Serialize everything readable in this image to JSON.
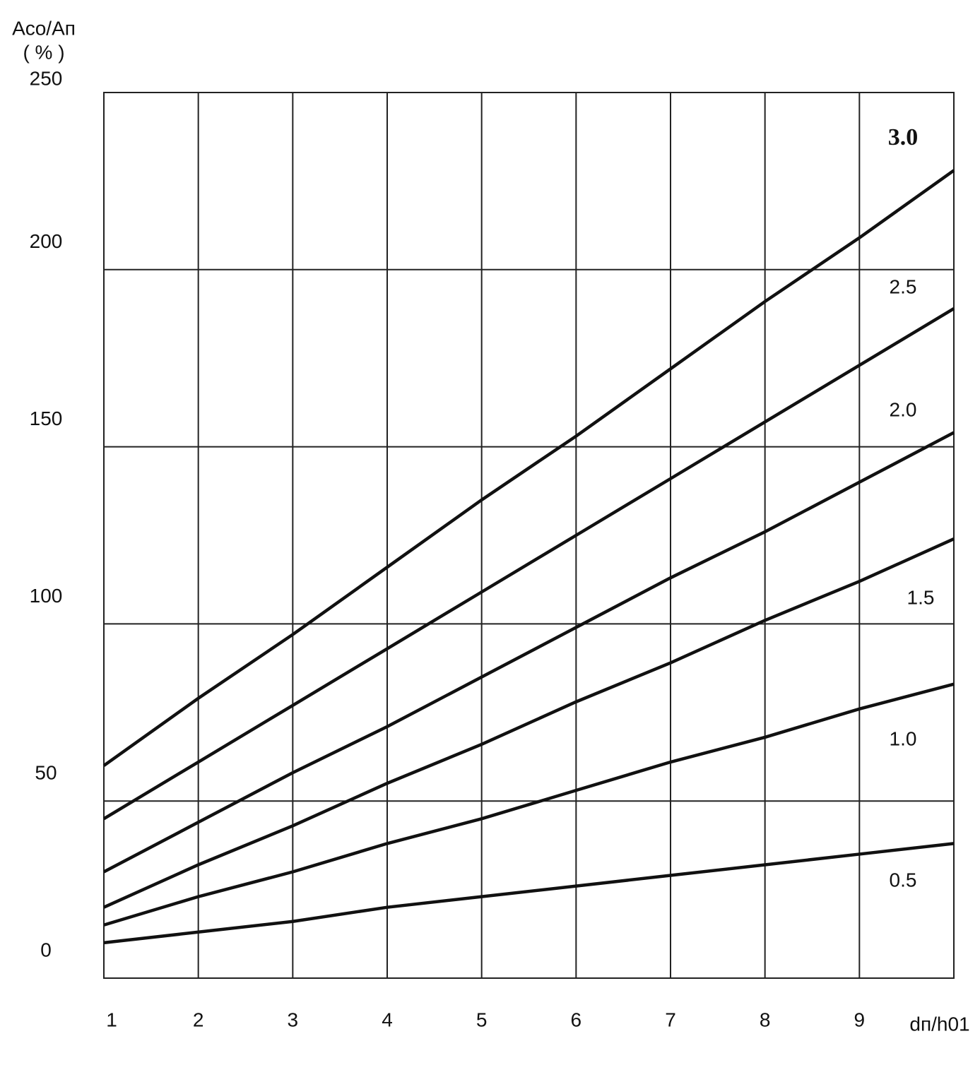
{
  "chart_data": {
    "type": "line",
    "y_label": "Aco/Aп",
    "y_unit": "( % )",
    "x_label": "dп/h01",
    "x": [
      1,
      2,
      3,
      4,
      5,
      6,
      7,
      8,
      9,
      10
    ],
    "series": [
      {
        "name": "0.5",
        "color": "#111111",
        "values": [
          10,
          13,
          16,
          20,
          23,
          26,
          29,
          32,
          35,
          38
        ]
      },
      {
        "name": "1.0",
        "color": "#111111",
        "values": [
          15,
          23,
          30,
          38,
          45,
          53,
          61,
          68,
          76,
          83
        ]
      },
      {
        "name": "1.5",
        "color": "#111111",
        "values": [
          20,
          32,
          43,
          55,
          66,
          78,
          89,
          101,
          112,
          124
        ]
      },
      {
        "name": "2.0",
        "color": "#111111",
        "values": [
          30,
          44,
          58,
          71,
          85,
          99,
          113,
          126,
          140,
          154
        ]
      },
      {
        "name": "2.5",
        "color": "#111111",
        "values": [
          45,
          61,
          77,
          93,
          109,
          125,
          141,
          157,
          173,
          189
        ]
      },
      {
        "name": "3.0",
        "color": "#111111",
        "values": [
          60,
          79,
          97,
          116,
          135,
          153,
          172,
          191,
          209,
          228
        ]
      }
    ],
    "xlim": [
      1,
      10
    ],
    "xticks": [
      1,
      2,
      3,
      4,
      5,
      6,
      7,
      8,
      9
    ],
    "ylim": [
      0,
      250
    ],
    "yticks": [
      0,
      50,
      100,
      150,
      200,
      250
    ],
    "grid": true
  }
}
